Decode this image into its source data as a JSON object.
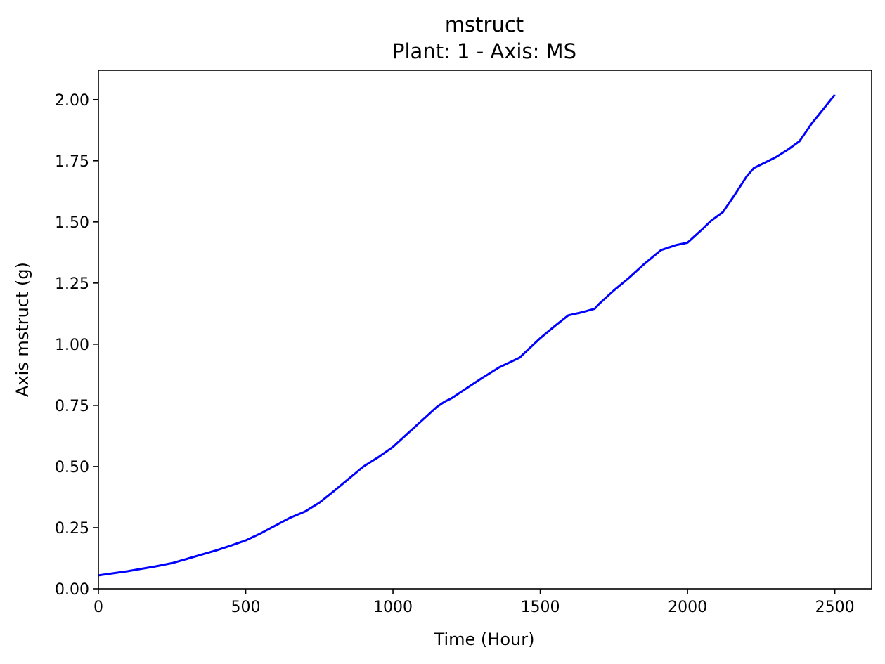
{
  "chart_data": {
    "type": "line",
    "title": "mstruct",
    "subtitle": "Plant: 1 - Axis: MS",
    "xlabel": "Time (Hour)",
    "ylabel": "Axis mstruct (g)",
    "xlim": [
      0,
      2625
    ],
    "ylim": [
      0,
      2.12
    ],
    "x_ticks": [
      0,
      500,
      1000,
      1500,
      2000,
      2500
    ],
    "x_tick_labels": [
      "0",
      "500",
      "1000",
      "1500",
      "2000",
      "2500"
    ],
    "y_ticks": [
      0,
      0.25,
      0.5,
      0.75,
      1.0,
      1.25,
      1.5,
      1.75,
      2.0
    ],
    "y_tick_labels": [
      "0.00",
      "0.25",
      "0.50",
      "0.75",
      "1.00",
      "1.25",
      "1.50",
      "1.75",
      "2.00"
    ],
    "grid": false,
    "line_color": "#0000ff",
    "series": [
      {
        "x": [
          0,
          100,
          200,
          250,
          300,
          350,
          400,
          450,
          500,
          550,
          600,
          650,
          700,
          750,
          800,
          850,
          900,
          950,
          1000,
          1050,
          1100,
          1150,
          1175,
          1200,
          1250,
          1300,
          1360,
          1430,
          1500,
          1550,
          1595,
          1640,
          1685,
          1700,
          1750,
          1800,
          1850,
          1880,
          1910,
          1935,
          1960,
          2000,
          2050,
          2080,
          2120,
          2160,
          2200,
          2225,
          2250,
          2300,
          2340,
          2380,
          2420,
          2450,
          2480,
          2500
        ],
        "y": [
          0.055,
          0.072,
          0.093,
          0.105,
          0.122,
          0.14,
          0.157,
          0.177,
          0.198,
          0.226,
          0.258,
          0.29,
          0.315,
          0.352,
          0.4,
          0.45,
          0.5,
          0.538,
          0.58,
          0.635,
          0.69,
          0.745,
          0.765,
          0.78,
          0.82,
          0.86,
          0.905,
          0.945,
          1.025,
          1.075,
          1.118,
          1.13,
          1.145,
          1.165,
          1.22,
          1.27,
          1.325,
          1.355,
          1.385,
          1.395,
          1.405,
          1.415,
          1.47,
          1.505,
          1.54,
          1.61,
          1.685,
          1.72,
          1.735,
          1.765,
          1.795,
          1.83,
          1.9,
          1.945,
          1.99,
          2.02
        ]
      }
    ]
  }
}
